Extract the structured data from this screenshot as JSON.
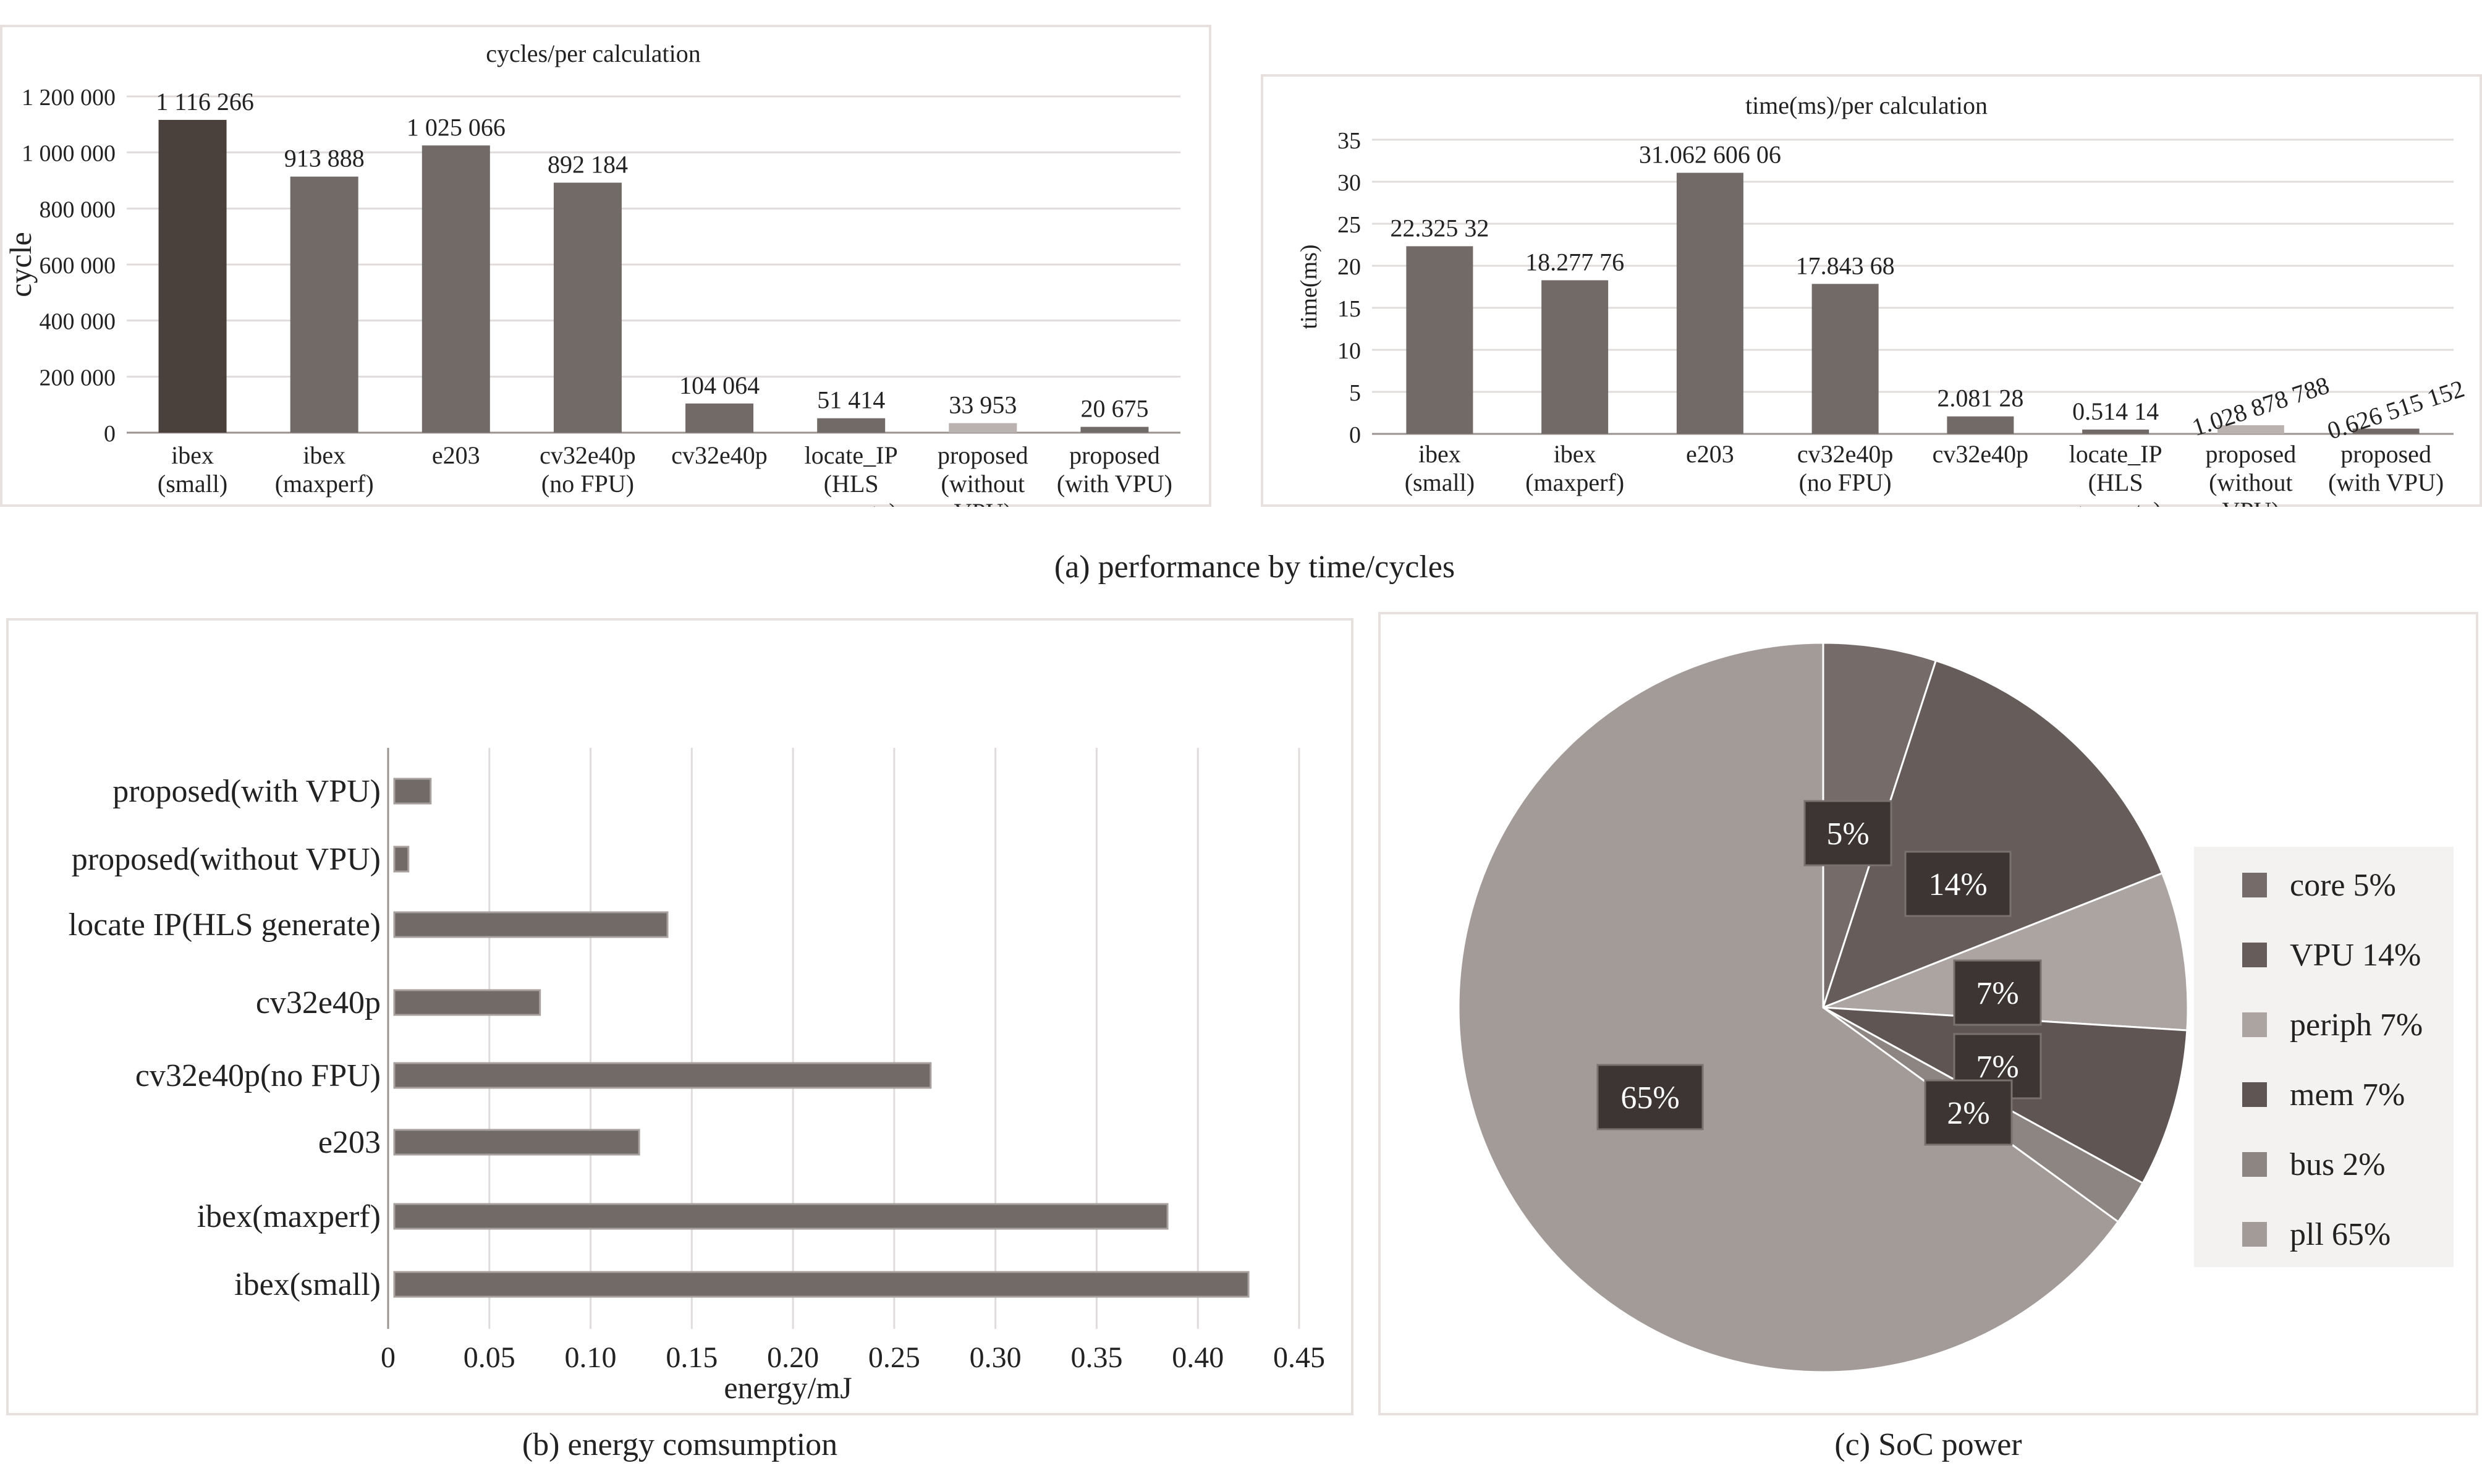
{
  "captions": {
    "a": "(a) performance by time/cycles",
    "b": "(b) energy comsumption",
    "c": "(c) SoC power"
  },
  "colors": {
    "bar_dark": "#4a403c",
    "bar": "#726a67",
    "bar_light": "#b9b2af",
    "grid": "#e0dcdb",
    "frame": "#e6e1df"
  },
  "chart_data": [
    {
      "type": "bar",
      "title": "cycles/per calculation",
      "ylabel": "cycle",
      "xlabel": "",
      "ylim": [
        0,
        1200000
      ],
      "yticks": [
        0,
        200000,
        400000,
        600000,
        800000,
        1000000,
        1200000
      ],
      "ytick_labels": [
        "0",
        "200 000",
        "400 000",
        "600 000",
        "800 000",
        "1 000 000",
        "1 200 000"
      ],
      "grid": true,
      "categories": [
        [
          "ibex",
          "(small)"
        ],
        [
          "ibex",
          "(maxperf)"
        ],
        [
          "e203"
        ],
        [
          "cv32e40p",
          "(no FPU)"
        ],
        [
          "cv32e40p"
        ],
        [
          "locate_IP",
          "(HLS",
          "generate)"
        ],
        [
          "proposed",
          "(without",
          "VPU)"
        ],
        [
          "proposed",
          "(with VPU)"
        ]
      ],
      "values": [
        1116266,
        913888,
        1025066,
        892184,
        104064,
        51414,
        33953,
        20675
      ],
      "data_labels": [
        "1 116 266",
        "913 888",
        "1 025 066",
        "892 184",
        "104 064",
        "51 414",
        "33 953",
        "20 675"
      ],
      "bar_colors": [
        "#4a403c",
        "#726a67",
        "#726a67",
        "#726a67",
        "#726a67",
        "#726a67",
        "#b9b2af",
        "#726a67"
      ]
    },
    {
      "type": "bar",
      "title": "time(ms)/per calculation",
      "ylabel": "time(ms)",
      "xlabel": "",
      "ylim": [
        0,
        35
      ],
      "yticks": [
        0,
        5,
        10,
        15,
        20,
        25,
        30,
        35
      ],
      "ytick_labels": [
        "0",
        "5",
        "10",
        "15",
        "20",
        "25",
        "30",
        "35"
      ],
      "grid": true,
      "categories": [
        [
          "ibex",
          "(small)"
        ],
        [
          "ibex",
          "(maxperf)"
        ],
        [
          "e203"
        ],
        [
          "cv32e40p",
          "(no FPU)"
        ],
        [
          "cv32e40p"
        ],
        [
          "locate_IP",
          "(HLS",
          "generate)"
        ],
        [
          "proposed",
          "(without",
          "VPU)"
        ],
        [
          "proposed",
          "(with VPU)"
        ]
      ],
      "values": [
        22.32532,
        18.27776,
        31.06260606,
        17.84368,
        2.08128,
        0.51414,
        1.028878788,
        0.626515152
      ],
      "data_labels": [
        "22.325 32",
        "18.277 76",
        "31.062 606 06",
        "17.843 68",
        "2.081 28",
        "0.514 14",
        "1.028 878 788",
        "0.626 515 152"
      ],
      "bar_colors": [
        "#726a67",
        "#726a67",
        "#726a67",
        "#726a67",
        "#726a67",
        "#726a67",
        "#b9b2af",
        "#726a67"
      ]
    },
    {
      "type": "bar",
      "orientation": "horizontal",
      "title": "",
      "xlabel": "energy/mJ",
      "ylabel": "",
      "xlim": [
        0,
        0.45
      ],
      "xticks": [
        0,
        0.05,
        0.1,
        0.15,
        0.2,
        0.25,
        0.3,
        0.35,
        0.4,
        0.45
      ],
      "xtick_labels": [
        "0",
        "0.05",
        "0.10",
        "0.15",
        "0.20",
        "0.25",
        "0.30",
        "0.35",
        "0.40",
        "0.45"
      ],
      "grid": true,
      "categories": [
        "proposed(with VPU)",
        "proposed(without VPU)",
        "locate IP(HLS generate)",
        "cv32e40p",
        "cv32e40p(no FPU)",
        "e203",
        "ibex(maxperf)",
        "ibex(small)"
      ],
      "values": [
        0.021,
        0.01,
        0.138,
        0.075,
        0.268,
        0.124,
        0.385,
        0.425
      ]
    },
    {
      "type": "pie",
      "title": "",
      "legend_position": "right",
      "slices": [
        {
          "label": "core 5%",
          "value": 5,
          "pct": "5%",
          "color": "#756c69"
        },
        {
          "label": "VPU 14%",
          "value": 14,
          "pct": "14%",
          "color": "#665d5a"
        },
        {
          "label": "periph 7%",
          "value": 7,
          "pct": "7%",
          "color": "#aba4a1"
        },
        {
          "label": "mem 7%",
          "value": 7,
          "pct": "7%",
          "color": "#5f5653"
        },
        {
          "label": "bus 2%",
          "value": 2,
          "pct": "2%",
          "color": "#8d8582"
        },
        {
          "label": "pll 65%",
          "value": 65,
          "pct": "65%",
          "color": "#a39b98"
        }
      ]
    }
  ]
}
